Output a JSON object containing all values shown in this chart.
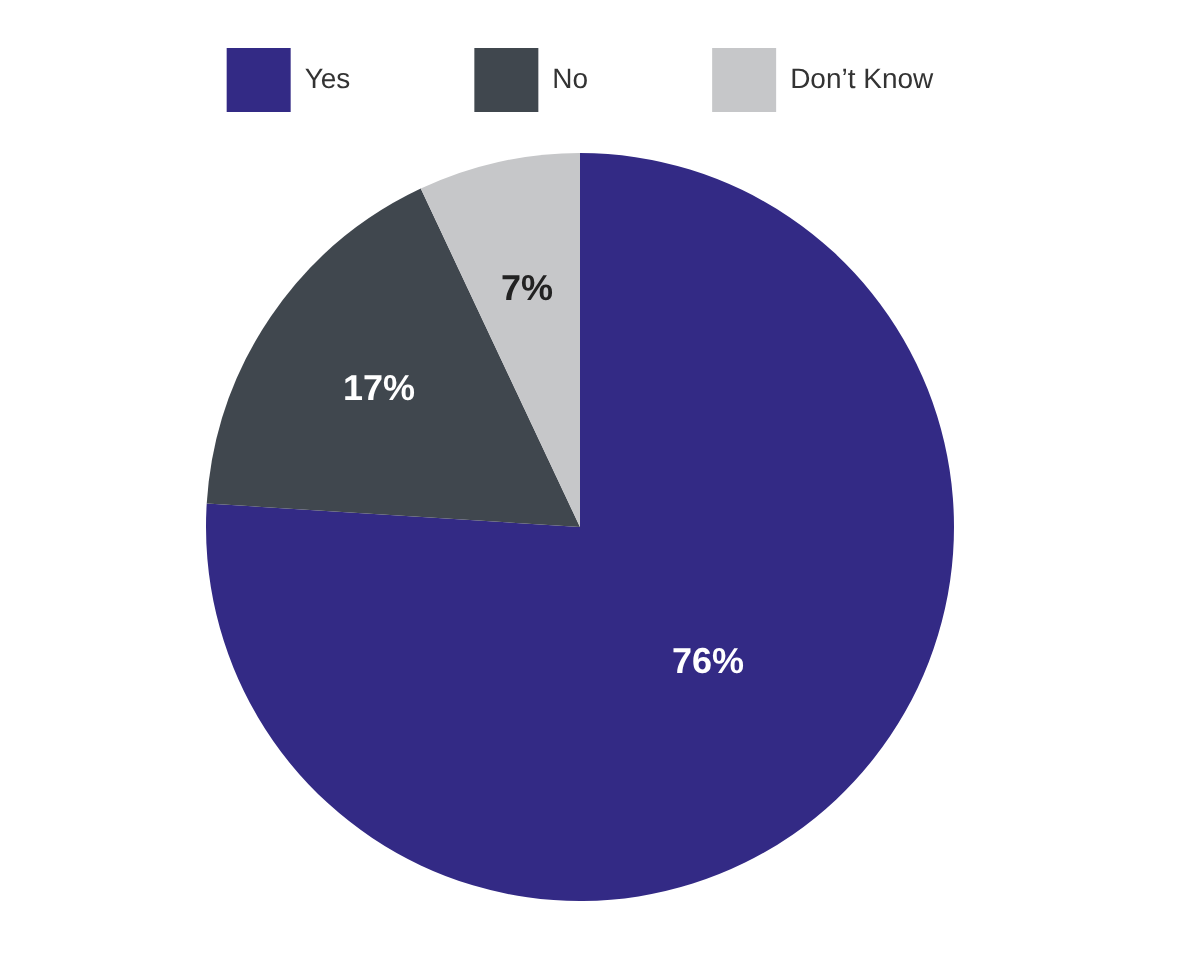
{
  "chart_data": {
    "type": "pie",
    "categories": [
      "Yes",
      "No",
      "Don’t Know"
    ],
    "values": [
      76,
      17,
      7
    ],
    "colors": [
      "#332a85",
      "#40474e",
      "#c6c7c9"
    ],
    "value_labels": [
      "76%",
      "17%",
      "7%"
    ],
    "legend": "top"
  }
}
